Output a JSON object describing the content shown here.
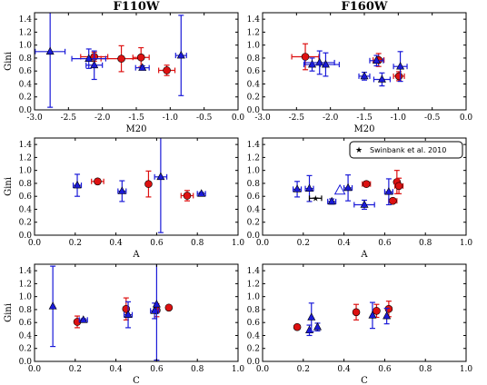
{
  "figure": {
    "colors": {
      "red": "#dd1111",
      "blue": "#1a1ad8",
      "frame": "#000000"
    }
  },
  "chart_data": [
    {
      "type": "scatter",
      "title": "F110W",
      "xlabel": "M20",
      "ylabel": "Gini",
      "xlim": [
        -3.0,
        0.0
      ],
      "ylim": [
        0.0,
        1.5
      ],
      "xticks": [
        "-3.0",
        "-2.5",
        "-2.0",
        "-1.5",
        "-1.0",
        "-0.5",
        "0.0"
      ],
      "yticks": [
        "0.0",
        "0.2",
        "0.4",
        "0.6",
        "0.8",
        "1.0",
        "1.2",
        "1.4"
      ],
      "grid": false,
      "series": [
        {
          "marker": "circle",
          "color": "red",
          "points": [
            {
              "x": -2.12,
              "y": 0.82,
              "xerr": 0.2,
              "yerr": 0.07
            },
            {
              "x": -1.72,
              "y": 0.79,
              "xerr": 0.3,
              "yerr": 0.2
            },
            {
              "x": -1.43,
              "y": 0.81,
              "xerr": 0.12,
              "yerr": 0.15
            },
            {
              "x": -1.05,
              "y": 0.61,
              "xerr": 0.12,
              "yerr": 0.08
            }
          ]
        },
        {
          "marker": "triangle",
          "color": "blue",
          "points": [
            {
              "x": -2.77,
              "y": 0.9,
              "xerr": 0.22,
              "yerr": 0.86
            },
            {
              "x": -2.2,
              "y": 0.79,
              "xerr": 0.25,
              "yerr": 0.15
            },
            {
              "x": -2.12,
              "y": 0.69,
              "xerr": 0.12,
              "yerr": 0.22
            },
            {
              "x": -1.41,
              "y": 0.65,
              "xerr": 0.1,
              "yerr": 0.03
            },
            {
              "x": -0.84,
              "y": 0.84,
              "xerr": 0.08,
              "yerr": 0.62
            }
          ]
        }
      ]
    },
    {
      "type": "scatter",
      "title": "F160W",
      "xlabel": "M20",
      "ylabel": "",
      "xlim": [
        -3.0,
        0.0
      ],
      "ylim": [
        0.0,
        1.5
      ],
      "xticks": [
        "-3.0",
        "-2.5",
        "-2.0",
        "-1.5",
        "-1.0",
        "-0.5",
        "0.0"
      ],
      "yticks": [
        "0.0",
        "0.2",
        "0.4",
        "0.6",
        "0.8",
        "1.0",
        "1.2",
        "1.4"
      ],
      "grid": false,
      "series": [
        {
          "marker": "circle",
          "color": "red",
          "points": [
            {
              "x": -2.37,
              "y": 0.82,
              "xerr": 0.2,
              "yerr": 0.2
            },
            {
              "x": -1.29,
              "y": 0.77,
              "xerr": 0.08,
              "yerr": 0.1
            },
            {
              "x": -0.99,
              "y": 0.52,
              "xerr": 0.08,
              "yerr": 0.07
            }
          ]
        },
        {
          "marker": "triangle",
          "color": "blue",
          "points": [
            {
              "x": -2.27,
              "y": 0.7,
              "xerr": 0.12,
              "yerr": 0.1
            },
            {
              "x": -2.16,
              "y": 0.73,
              "xerr": 0.22,
              "yerr": 0.18
            },
            {
              "x": -2.07,
              "y": 0.7,
              "xerr": 0.2,
              "yerr": 0.18
            },
            {
              "x": -1.5,
              "y": 0.52,
              "xerr": 0.08,
              "yerr": 0.06
            },
            {
              "x": -1.32,
              "y": 0.76,
              "xerr": 0.1,
              "yerr": 0.08
            },
            {
              "x": -1.24,
              "y": 0.47,
              "xerr": 0.12,
              "yerr": 0.1
            },
            {
              "x": -0.97,
              "y": 0.67,
              "xerr": 0.1,
              "yerr": 0.23
            }
          ]
        }
      ]
    },
    {
      "type": "scatter",
      "title": "",
      "xlabel": "A",
      "ylabel": "Gini",
      "xlim": [
        0.0,
        1.0
      ],
      "ylim": [
        0.0,
        1.5
      ],
      "xticks": [
        "0.0",
        "0.2",
        "0.4",
        "0.6",
        "0.8",
        "1.0"
      ],
      "yticks": [
        "0.0",
        "0.2",
        "0.4",
        "0.6",
        "0.8",
        "1.0",
        "1.2",
        "1.4"
      ],
      "grid": false,
      "series": [
        {
          "marker": "circle",
          "color": "red",
          "points": [
            {
              "x": 0.31,
              "y": 0.83,
              "xerr": 0.03,
              "yerr": 0.02
            },
            {
              "x": 0.56,
              "y": 0.79,
              "xerr": 0.0,
              "yerr": 0.2
            },
            {
              "x": 0.75,
              "y": 0.61,
              "xerr": 0.03,
              "yerr": 0.08
            }
          ]
        },
        {
          "marker": "triangle",
          "color": "blue",
          "points": [
            {
              "x": 0.21,
              "y": 0.77,
              "xerr": 0.02,
              "yerr": 0.17
            },
            {
              "x": 0.43,
              "y": 0.68,
              "xerr": 0.02,
              "yerr": 0.16
            },
            {
              "x": 0.62,
              "y": 0.9,
              "xerr": 0.03,
              "yerr": 0.86
            },
            {
              "x": 0.82,
              "y": 0.64,
              "xerr": 0.02,
              "yerr": 0.02
            }
          ]
        }
      ]
    },
    {
      "type": "scatter",
      "title": "",
      "xlabel": "A",
      "ylabel": "",
      "xlim": [
        0.0,
        1.0
      ],
      "ylim": [
        0.0,
        1.5
      ],
      "xticks": [
        "0.0",
        "0.2",
        "0.4",
        "0.6",
        "0.8",
        "1.0"
      ],
      "yticks": [
        "0.0",
        "0.2",
        "0.4",
        "0.6",
        "0.8",
        "1.0",
        "1.2",
        "1.4"
      ],
      "grid": false,
      "legend": {
        "location": "top-right",
        "entries": [
          {
            "marker": "star",
            "label": "Swinbank et al. 2010"
          }
        ]
      },
      "series": [
        {
          "marker": "circle",
          "color": "red",
          "points": [
            {
              "x": 0.51,
              "y": 0.79,
              "xerr": 0.02,
              "yerr": 0.04
            },
            {
              "x": 0.64,
              "y": 0.53,
              "xerr": 0.02,
              "yerr": 0.0
            },
            {
              "x": 0.66,
              "y": 0.82,
              "xerr": 0.0,
              "yerr": 0.18
            },
            {
              "x": 0.67,
              "y": 0.76,
              "xerr": 0.02,
              "yerr": 0.12
            }
          ]
        },
        {
          "marker": "triangle",
          "color": "blue",
          "points": [
            {
              "x": 0.17,
              "y": 0.71,
              "xerr": 0.02,
              "yerr": 0.12
            },
            {
              "x": 0.23,
              "y": 0.72,
              "xerr": 0.02,
              "yerr": 0.2
            },
            {
              "x": 0.34,
              "y": 0.52,
              "xerr": 0.02,
              "yerr": 0.04
            },
            {
              "x": 0.42,
              "y": 0.73,
              "xerr": 0.02,
              "yerr": 0.2
            },
            {
              "x": 0.5,
              "y": 0.47,
              "xerr": 0.05,
              "yerr": 0.07
            },
            {
              "x": 0.62,
              "y": 0.67,
              "xerr": 0.02,
              "yerr": 0.2
            }
          ]
        },
        {
          "marker": "triangle-open",
          "color": "blue",
          "points": [
            {
              "x": 0.38,
              "y": 0.69,
              "xerr": 0.0,
              "yerr": 0.0
            }
          ]
        },
        {
          "marker": "star",
          "color": "black",
          "points": [
            {
              "x": 0.26,
              "y": 0.57,
              "xerr": 0.03,
              "yerr": 0.0
            }
          ]
        }
      ]
    },
    {
      "type": "scatter",
      "title": "",
      "xlabel": "C",
      "ylabel": "Gini",
      "xlim": [
        0.0,
        1.0
      ],
      "ylim": [
        0.0,
        1.5
      ],
      "xticks": [
        "0.0",
        "0.2",
        "0.4",
        "0.6",
        "0.8",
        "1.0"
      ],
      "yticks": [
        "0.0",
        "0.2",
        "0.4",
        "0.6",
        "0.8",
        "1.0",
        "1.2",
        "1.4"
      ],
      "grid": false,
      "series": [
        {
          "marker": "circle",
          "color": "red",
          "points": [
            {
              "x": 0.21,
              "y": 0.61,
              "xerr": 0.0,
              "yerr": 0.09
            },
            {
              "x": 0.45,
              "y": 0.81,
              "xerr": 0.0,
              "yerr": 0.17
            },
            {
              "x": 0.6,
              "y": 0.79,
              "xerr": 0.0,
              "yerr": 0.1
            },
            {
              "x": 0.66,
              "y": 0.83,
              "xerr": 0.0,
              "yerr": 0.0
            }
          ]
        },
        {
          "marker": "triangle",
          "color": "blue",
          "points": [
            {
              "x": 0.09,
              "y": 0.85,
              "xerr": 0.0,
              "yerr": 0.62
            },
            {
              "x": 0.24,
              "y": 0.64,
              "xerr": 0.02,
              "yerr": 0.02
            },
            {
              "x": 0.46,
              "y": 0.72,
              "xerr": 0.02,
              "yerr": 0.2
            },
            {
              "x": 0.59,
              "y": 0.78,
              "xerr": 0.02,
              "yerr": 0.12
            },
            {
              "x": 0.6,
              "y": 0.88,
              "xerr": 0.0,
              "yerr": 0.86
            }
          ]
        }
      ]
    },
    {
      "type": "scatter",
      "title": "",
      "xlabel": "C",
      "ylabel": "",
      "xlim": [
        0.0,
        1.0
      ],
      "ylim": [
        0.0,
        1.5
      ],
      "xticks": [
        "0.0",
        "0.2",
        "0.4",
        "0.6",
        "0.8",
        "1.0"
      ],
      "yticks": [
        "0.0",
        "0.2",
        "0.4",
        "0.6",
        "0.8",
        "1.0",
        "1.2",
        "1.4"
      ],
      "grid": false,
      "series": [
        {
          "marker": "circle",
          "color": "red",
          "points": [
            {
              "x": 0.17,
              "y": 0.53,
              "xerr": 0.0,
              "yerr": 0.0
            },
            {
              "x": 0.46,
              "y": 0.76,
              "xerr": 0.0,
              "yerr": 0.12
            },
            {
              "x": 0.56,
              "y": 0.78,
              "xerr": 0.0,
              "yerr": 0.1
            },
            {
              "x": 0.62,
              "y": 0.81,
              "xerr": 0.0,
              "yerr": 0.12
            }
          ]
        },
        {
          "marker": "triangle",
          "color": "blue",
          "points": [
            {
              "x": 0.23,
              "y": 0.48,
              "xerr": 0.0,
              "yerr": 0.08
            },
            {
              "x": 0.24,
              "y": 0.68,
              "xerr": 0.0,
              "yerr": 0.22
            },
            {
              "x": 0.27,
              "y": 0.53,
              "xerr": 0.0,
              "yerr": 0.06
            },
            {
              "x": 0.54,
              "y": 0.71,
              "xerr": 0.0,
              "yerr": 0.2
            },
            {
              "x": 0.61,
              "y": 0.7,
              "xerr": 0.0,
              "yerr": 0.12
            }
          ]
        }
      ]
    }
  ]
}
